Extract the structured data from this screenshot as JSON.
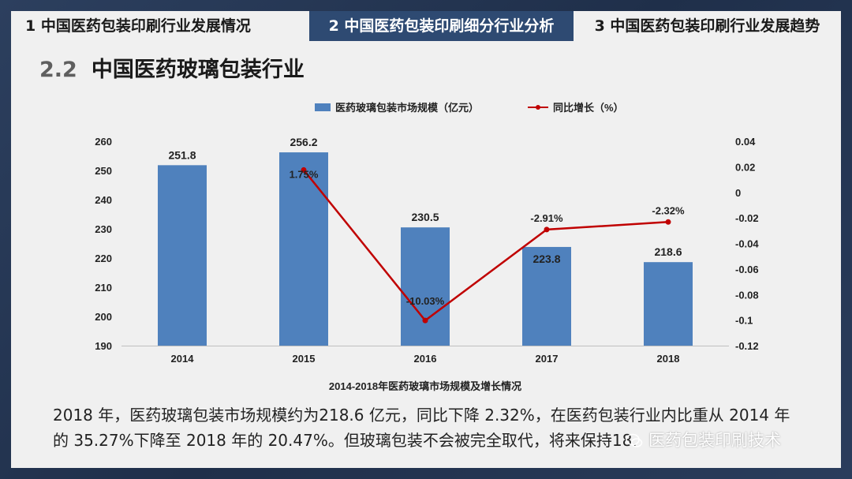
{
  "tabs": [
    {
      "label": "1  中国医药包装印刷行业发展情况"
    },
    {
      "label": "2  中国医药包装印刷细分行业分析"
    },
    {
      "label": "3  中国医药包装印刷行业发展趋势"
    }
  ],
  "section": {
    "number": "2.2",
    "title": "中国医药玻璃包装行业"
  },
  "colors": {
    "bar": "#4f81bd",
    "line": "#c00000",
    "active_tab": "#2e4a72"
  },
  "chart_data": {
    "type": "bar",
    "title": "2014-2018年医药玻璃市场规模及增长情况",
    "categories": [
      "2014",
      "2015",
      "2016",
      "2017",
      "2018"
    ],
    "legend_position": "top",
    "grid": false,
    "series": [
      {
        "name": "医药玻璃包装市场规模（亿元）",
        "type": "bar",
        "axis": "left",
        "values": [
          251.8,
          256.2,
          230.5,
          223.8,
          218.6
        ],
        "labels": [
          "251.8",
          "256.2",
          "230.5",
          "223.8",
          "218.6"
        ]
      },
      {
        "name": "同比增长（%）",
        "type": "line",
        "axis": "right",
        "values": [
          null,
          0.0175,
          -0.1003,
          -0.0291,
          -0.0232
        ],
        "labels": [
          "",
          "1.75%",
          "-10.03%",
          "-2.91%",
          "-2.32%"
        ]
      }
    ],
    "y_left": {
      "min": 190,
      "max": 260,
      "ticks": [
        "190",
        "200",
        "210",
        "220",
        "230",
        "240",
        "250",
        "260"
      ]
    },
    "y_right": {
      "min": -0.12,
      "max": 0.04,
      "ticks": [
        "0.04",
        "0.02",
        "0",
        "-0.02",
        "-0.04",
        "-0.06",
        "-0.08",
        "-0.1",
        "-0.12"
      ]
    }
  },
  "body_text": {
    "line1": "2018 年，医药玻璃包装市场规模约为218.6 亿元，同比下降 2.32%，在医药包装行业内比重从 2014 年",
    "line2": "的 35.27%下降至 2018 年的 20.47%。但玻璃包装不会被完全取代，将来保持18."
  },
  "watermark": {
    "text": "医药包装印刷技术",
    "icon": "wechat-icon"
  }
}
